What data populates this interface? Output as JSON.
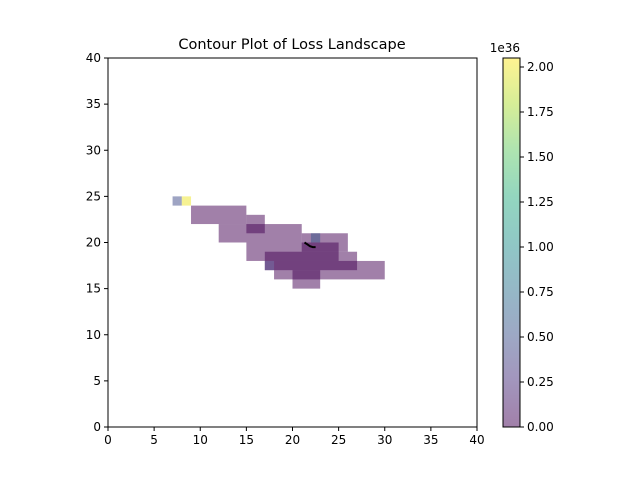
{
  "chart_data": {
    "type": "heatmap",
    "title": "Contour Plot of Loss Landscape",
    "xlabel": "",
    "ylabel": "",
    "xlim": [
      0,
      40
    ],
    "ylim": [
      0,
      40
    ],
    "xticks": [
      "0",
      "5",
      "10",
      "15",
      "20",
      "25",
      "30",
      "35",
      "40"
    ],
    "yticks": [
      "0",
      "5",
      "10",
      "15",
      "20",
      "25",
      "30",
      "35",
      "40"
    ],
    "grid": false,
    "alpha": 0.5,
    "colormap": "viridis",
    "colorbar": {
      "range": [
        0,
        2.05
      ],
      "ticks": [
        "0.00",
        "0.25",
        "0.50",
        "0.75",
        "1.00",
        "1.25",
        "1.50",
        "1.75",
        "2.00"
      ],
      "multiplier": "1e36"
    },
    "cells": [
      {
        "x": [
          9,
          15
        ],
        "y": [
          22,
          24
        ],
        "value": 0
      },
      {
        "x": [
          15,
          17
        ],
        "y": [
          21,
          23
        ],
        "value": 0
      },
      {
        "x": [
          12,
          21
        ],
        "y": [
          20,
          22
        ],
        "value": 0
      },
      {
        "x": [
          15,
          25
        ],
        "y": [
          18,
          20
        ],
        "value": 0
      },
      {
        "x": [
          21,
          26
        ],
        "y": [
          19,
          21
        ],
        "value": 0
      },
      {
        "x": [
          17,
          27
        ],
        "y": [
          17,
          19
        ],
        "value": 0
      },
      {
        "x": [
          18,
          30
        ],
        "y": [
          16,
          18
        ],
        "value": 0
      },
      {
        "x": [
          20,
          23
        ],
        "y": [
          15,
          17
        ],
        "value": 0
      },
      {
        "x": [
          7,
          8
        ],
        "y": [
          24,
          25
        ],
        "value": 0.45
      },
      {
        "x": [
          8,
          9
        ],
        "y": [
          24,
          25
        ],
        "value": 2.0
      },
      {
        "x": [
          22,
          23
        ],
        "y": [
          20,
          21
        ],
        "value": 0.55
      },
      {
        "x": [
          17,
          18
        ],
        "y": [
          17,
          18
        ],
        "value": 0.3
      }
    ],
    "path": {
      "color": "#000000",
      "points": [
        [
          21.3,
          20.0
        ],
        [
          21.6,
          19.8
        ],
        [
          21.9,
          19.6
        ],
        [
          22.2,
          19.5
        ],
        [
          22.5,
          19.5
        ]
      ]
    }
  }
}
